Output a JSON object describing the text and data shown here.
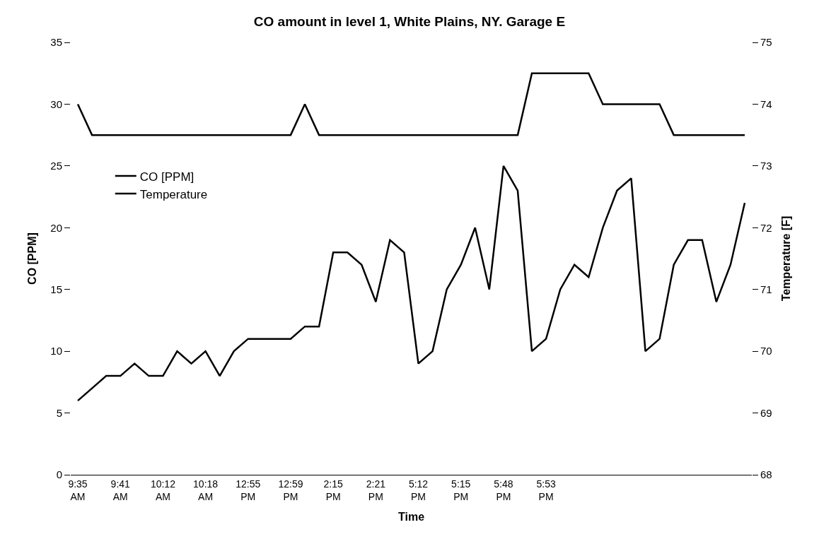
{
  "chart_data": {
    "type": "line",
    "title": "CO amount in level 1, White Plains, NY. Garage E",
    "xlabel": "Time",
    "ylabel": "CO [PPM]",
    "y2label": "Temperature [F]",
    "categories": [
      "9:35 AM",
      null,
      null,
      "9:41 AM",
      null,
      null,
      "10:12 AM",
      null,
      null,
      "10:18 AM",
      null,
      null,
      "12:55 PM",
      null,
      null,
      "12:59 PM",
      null,
      null,
      "2:15 PM",
      null,
      null,
      "2:21 PM",
      null,
      null,
      "5:12 PM",
      null,
      null,
      "5:15 PM",
      null,
      null,
      "5:48 PM",
      null,
      null,
      "5:53 PM",
      null,
      null,
      null,
      null,
      null,
      null,
      null,
      null,
      null,
      null,
      null,
      null,
      null,
      null
    ],
    "series": [
      {
        "name": "CO [PPM]",
        "color": "#000000",
        "values": [
          6,
          7,
          8,
          8,
          9,
          8,
          8,
          10,
          9,
          10,
          8,
          10,
          11,
          11,
          11,
          11,
          12,
          12,
          18,
          18,
          17,
          14,
          19,
          18,
          9,
          10,
          15,
          17,
          20,
          15,
          25,
          23,
          10,
          11,
          15,
          17,
          16,
          20,
          23,
          24,
          10,
          11,
          17,
          19,
          19,
          14,
          17,
          22
        ]
      },
      {
        "name": "Temperature",
        "color": "#000000",
        "axis": "y2",
        "values": [
          74,
          73.5,
          73.5,
          73.5,
          73.5,
          73.5,
          73.5,
          73.5,
          73.5,
          73.5,
          73.5,
          73.5,
          73.5,
          73.5,
          73.5,
          73.5,
          74,
          73.5,
          73.5,
          73.5,
          73.5,
          73.5,
          73.5,
          73.5,
          73.5,
          73.5,
          73.5,
          73.5,
          73.5,
          73.5,
          73.5,
          73.5,
          74.5,
          74.5,
          74.5,
          74.5,
          74.5,
          74,
          74,
          74,
          74,
          74,
          73.5,
          73.5,
          73.5,
          73.5,
          73.5,
          73.5
        ]
      }
    ],
    "ylim": [
      0,
      35
    ],
    "yticks": [
      0,
      5,
      10,
      15,
      20,
      25,
      30,
      35
    ],
    "y2lim": [
      68,
      75
    ],
    "y2ticks": [
      68,
      69,
      70,
      71,
      72,
      73,
      74,
      75
    ],
    "legend": "top left",
    "marker": "none",
    "line_style": "solid"
  }
}
